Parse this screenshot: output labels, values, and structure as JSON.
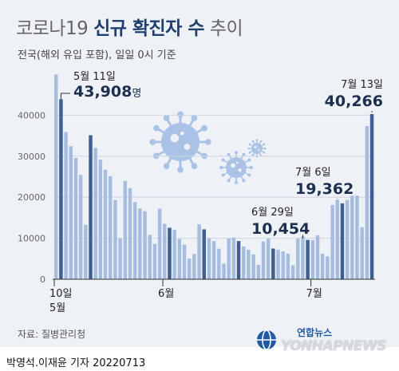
{
  "header": {
    "title_normal": "코로나19",
    "title_bold": "신규 확진자 수",
    "title_tail": "추이",
    "subtitle": "전국(해외 유입 포함), 일일 0시 기준"
  },
  "footer": {
    "source": "자료: 질병관리청",
    "byline": "박영석.이재윤 기자  20220713"
  },
  "logo": {
    "korean": "연합뉴스",
    "english": "YONHAPNEWS",
    "icon": "yonhap-globe-icon"
  },
  "colors": {
    "bar_light": "#a7bde0",
    "bar_dark": "#3e5f8f",
    "grid": "#cfd6e0",
    "virus": "#a9c2e6",
    "label_dark": "#1d2f4f"
  },
  "chart_data": {
    "type": "bar",
    "dates": [
      "5/10",
      "5/11",
      "5/12",
      "5/13",
      "5/14",
      "5/15",
      "5/16",
      "5/17",
      "5/18",
      "5/19",
      "5/20",
      "5/21",
      "5/22",
      "5/23",
      "5/24",
      "5/25",
      "5/26",
      "5/27",
      "5/28",
      "5/29",
      "5/30",
      "5/31",
      "6/1",
      "6/2",
      "6/3",
      "6/4",
      "6/5",
      "6/6",
      "6/7",
      "6/8",
      "6/9",
      "6/10",
      "6/11",
      "6/12",
      "6/13",
      "6/14",
      "6/15",
      "6/16",
      "6/17",
      "6/18",
      "6/19",
      "6/20",
      "6/21",
      "6/22",
      "6/23",
      "6/24",
      "6/25",
      "6/26",
      "6/27",
      "6/28",
      "6/29",
      "6/30",
      "7/1",
      "7/2",
      "7/3",
      "7/4",
      "7/5",
      "7/6",
      "7/7",
      "7/8",
      "7/9",
      "7/10",
      "7/11",
      "7/12",
      "7/13"
    ],
    "values": [
      49927,
      43908,
      35906,
      32451,
      29581,
      25434,
      13296,
      35117,
      32057,
      29168,
      26705,
      25125,
      19293,
      9975,
      23956,
      22248,
      18816,
      17295,
      16584,
      10821,
      8630,
      17185,
      13518,
      12540,
      12045,
      9829,
      8437,
      5022,
      6171,
      13358,
      12161,
      10017,
      9311,
      7447,
      3829,
      9873,
      10153,
      9326,
      7996,
      7198,
      6067,
      3530,
      9240,
      9894,
      7493,
      7227,
      6786,
      6246,
      3423,
      9900,
      10454,
      9591,
      9528,
      10716,
      6250,
      5591,
      18127,
      19362,
      18506,
      19316,
      20407,
      20413,
      12697,
      37360,
      40266
    ],
    "dark_bar_dates": [
      "5/11",
      "5/17",
      "6/2",
      "6/9",
      "6/16",
      "6/23",
      "6/30",
      "7/7",
      "7/13"
    ],
    "ylim": [
      0,
      50000
    ],
    "y_ticks": [
      "0",
      "10000",
      "20000",
      "30000",
      "40000"
    ],
    "y_tick_values": [
      0,
      10000,
      20000,
      30000,
      40000
    ],
    "x_tick_labels": [
      {
        "date": "5/10",
        "line1": "10일",
        "line2": "5월"
      },
      {
        "date": "6/1",
        "line1": "6월",
        "line2": ""
      },
      {
        "date": "7/1",
        "line1": "7월",
        "line2": ""
      }
    ],
    "annotations": [
      {
        "date": "5/11",
        "label": "5월 11일",
        "value_text": "43,908",
        "unit": "명"
      },
      {
        "date": "6/29",
        "label": "6월 29일",
        "value_text": "10,454",
        "unit": ""
      },
      {
        "date": "7/6",
        "label": "7월 6일",
        "value_text": "19,362",
        "unit": ""
      },
      {
        "date": "7/13",
        "label": "7월 13일",
        "value_text": "40,266",
        "unit": ""
      }
    ],
    "grid": true,
    "legend": "none"
  }
}
